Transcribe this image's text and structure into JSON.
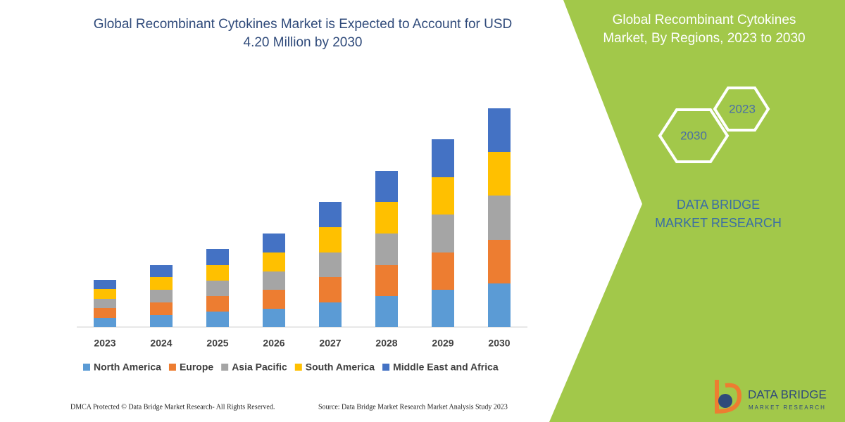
{
  "chart_data": {
    "type": "bar",
    "stacked": true,
    "title": "Global Recombinant Cytokines Market is Expected to Account for USD 4.20 Million by 2030",
    "categories": [
      "2023",
      "2024",
      "2025",
      "2026",
      "2027",
      "2028",
      "2029",
      "2030"
    ],
    "series": [
      {
        "name": "North America",
        "color": "#5b9bd5",
        "values": [
          13,
          17,
          22,
          26,
          35,
          44,
          53,
          62
        ]
      },
      {
        "name": "Europe",
        "color": "#ed7d31",
        "values": [
          14,
          18,
          22,
          27,
          36,
          44,
          53,
          62
        ]
      },
      {
        "name": "Asia Pacific",
        "color": "#a5a5a5",
        "values": [
          13,
          18,
          22,
          26,
          35,
          45,
          54,
          63
        ]
      },
      {
        "name": "South America",
        "color": "#ffc000",
        "values": [
          14,
          18,
          22,
          27,
          36,
          45,
          53,
          62
        ]
      },
      {
        "name": "Middle East and Africa",
        "color": "#4472c4",
        "values": [
          13,
          17,
          23,
          27,
          36,
          44,
          54,
          62
        ]
      }
    ]
  },
  "panel": {
    "title": "Global Recombinant Cytokines Market, By Regions, 2023 to 2030",
    "hexagons": [
      "2023",
      "2030"
    ],
    "brand": "DATA BRIDGE MARKET RESEARCH"
  },
  "footer": {
    "copyright": "DMCA Protected © Data Bridge Market Research- All Rights Reserved.",
    "source": "Source: Data Bridge Market Research  Market Analysis Study 2023"
  },
  "logo": {
    "name": "DATA BRIDGE",
    "tagline": "MARKET RESEARCH"
  }
}
